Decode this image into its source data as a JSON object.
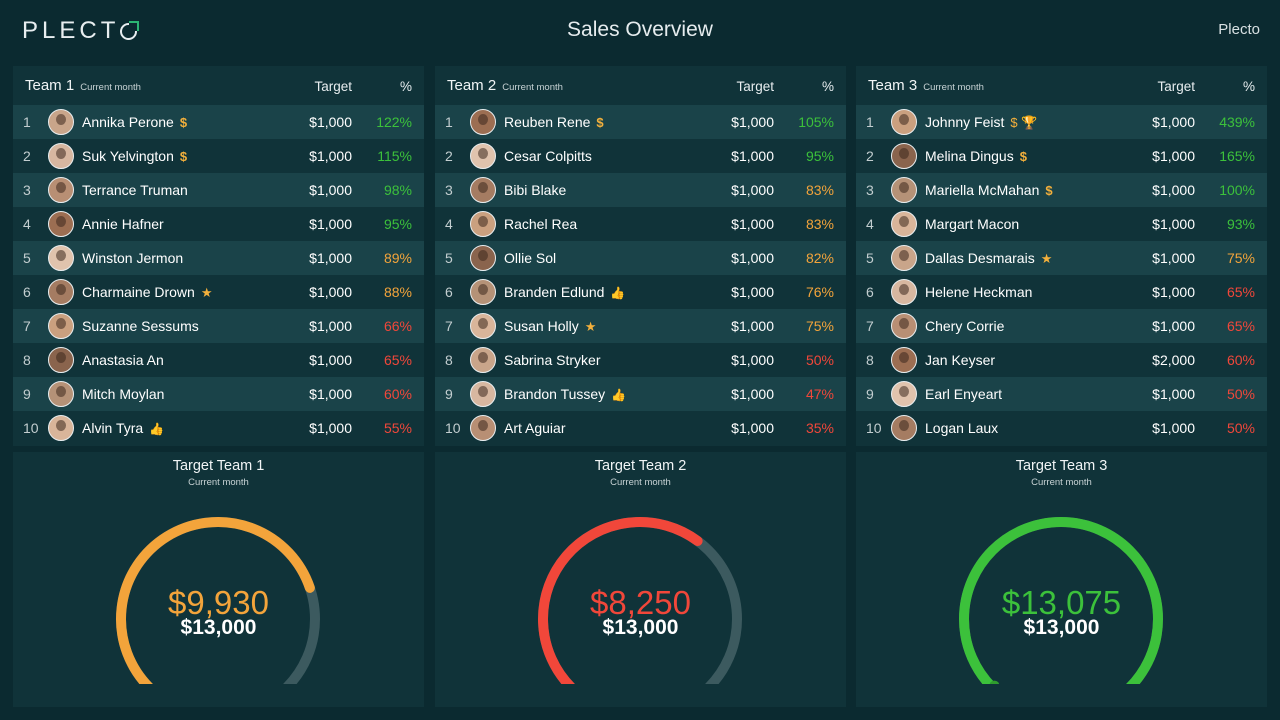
{
  "header": {
    "logo_text": "PLECT",
    "title": "Sales Overview",
    "brand": "Plecto"
  },
  "colors": {
    "background": "#0b2a30",
    "panel": "#103339",
    "row_alt": "#1a4349",
    "green": "#3cc13b",
    "orange": "#f3a43b",
    "red": "#f1473a",
    "gauge_track": "#3c5a5f"
  },
  "teams": [
    {
      "name": "Team 1",
      "period": "Current month",
      "target_header": "Target",
      "pct_header": "%",
      "rows": [
        {
          "rank": "1",
          "name": "Annika Perone",
          "badge": "$",
          "badge_icon": "dollar-icon",
          "target": "$1,000",
          "pct": "122%",
          "status": "green"
        },
        {
          "rank": "2",
          "name": "Suk Yelvington",
          "badge": "$",
          "badge_icon": "dollar-icon",
          "target": "$1,000",
          "pct": "115%",
          "status": "green"
        },
        {
          "rank": "3",
          "name": "Terrance Truman",
          "badge": "",
          "badge_icon": "",
          "target": "$1,000",
          "pct": "98%",
          "status": "green"
        },
        {
          "rank": "4",
          "name": "Annie Hafner",
          "badge": "",
          "badge_icon": "",
          "target": "$1,000",
          "pct": "95%",
          "status": "green"
        },
        {
          "rank": "5",
          "name": "Winston Jermon",
          "badge": "",
          "badge_icon": "",
          "target": "$1,000",
          "pct": "89%",
          "status": "orange"
        },
        {
          "rank": "6",
          "name": "Charmaine Drown",
          "badge": "★",
          "badge_icon": "star-icon",
          "target": "$1,000",
          "pct": "88%",
          "status": "orange"
        },
        {
          "rank": "7",
          "name": "Suzanne Sessums",
          "badge": "",
          "badge_icon": "",
          "target": "$1,000",
          "pct": "66%",
          "status": "red"
        },
        {
          "rank": "8",
          "name": "Anastasia An",
          "badge": "",
          "badge_icon": "",
          "target": "$1,000",
          "pct": "65%",
          "status": "red"
        },
        {
          "rank": "9",
          "name": "Mitch Moylan",
          "badge": "",
          "badge_icon": "",
          "target": "$1,000",
          "pct": "60%",
          "status": "red"
        },
        {
          "rank": "10",
          "name": "Alvin Tyra",
          "badge": "👍",
          "badge_icon": "thumbs-up-icon",
          "target": "$1,000",
          "pct": "55%",
          "status": "red"
        }
      ],
      "gauge": {
        "title": "Target Team 1",
        "period": "Current month",
        "value": "$9,930",
        "target": "$13,000",
        "fraction": 0.764,
        "color": "#f3a43b"
      }
    },
    {
      "name": "Team 2",
      "period": "Current month",
      "target_header": "Target",
      "pct_header": "%",
      "rows": [
        {
          "rank": "1",
          "name": "Reuben Rene",
          "badge": "$",
          "badge_icon": "dollar-icon",
          "target": "$1,000",
          "pct": "105%",
          "status": "green"
        },
        {
          "rank": "2",
          "name": "Cesar Colpitts",
          "badge": "",
          "badge_icon": "",
          "target": "$1,000",
          "pct": "95%",
          "status": "green"
        },
        {
          "rank": "3",
          "name": "Bibi Blake",
          "badge": "",
          "badge_icon": "",
          "target": "$1,000",
          "pct": "83%",
          "status": "orange"
        },
        {
          "rank": "4",
          "name": "Rachel Rea",
          "badge": "",
          "badge_icon": "",
          "target": "$1,000",
          "pct": "83%",
          "status": "orange"
        },
        {
          "rank": "5",
          "name": "Ollie Sol",
          "badge": "",
          "badge_icon": "",
          "target": "$1,000",
          "pct": "82%",
          "status": "orange"
        },
        {
          "rank": "6",
          "name": "Branden Edlund",
          "badge": "👍",
          "badge_icon": "thumbs-up-icon",
          "target": "$1,000",
          "pct": "76%",
          "status": "orange"
        },
        {
          "rank": "7",
          "name": "Susan Holly",
          "badge": "★",
          "badge_icon": "star-icon",
          "target": "$1,000",
          "pct": "75%",
          "status": "orange"
        },
        {
          "rank": "8",
          "name": "Sabrina Stryker",
          "badge": "",
          "badge_icon": "",
          "target": "$1,000",
          "pct": "50%",
          "status": "red"
        },
        {
          "rank": "9",
          "name": "Brandon Tussey",
          "badge": "👍",
          "badge_icon": "thumbs-up-icon",
          "target": "$1,000",
          "pct": "47%",
          "status": "red"
        },
        {
          "rank": "10",
          "name": "Art Aguiar",
          "badge": "",
          "badge_icon": "",
          "target": "$1,000",
          "pct": "35%",
          "status": "red"
        }
      ],
      "gauge": {
        "title": "Target Team 2",
        "period": "Current month",
        "value": "$8,250",
        "target": "$13,000",
        "fraction": 0.635,
        "color": "#f1473a"
      }
    },
    {
      "name": "Team 3",
      "period": "Current month",
      "target_header": "Target",
      "pct_header": "%",
      "rows": [
        {
          "rank": "1",
          "name": "Johnny Feist",
          "badge": "$ 🏆",
          "badge_icon": "dollar-trophy-icon",
          "target": "$1,000",
          "pct": "439%",
          "status": "green"
        },
        {
          "rank": "2",
          "name": "Melina Dingus",
          "badge": "$",
          "badge_icon": "dollar-icon",
          "target": "$1,000",
          "pct": "165%",
          "status": "green"
        },
        {
          "rank": "3",
          "name": "Mariella McMahan",
          "badge": "$",
          "badge_icon": "dollar-icon",
          "target": "$1,000",
          "pct": "100%",
          "status": "green"
        },
        {
          "rank": "4",
          "name": "Margart Macon",
          "badge": "",
          "badge_icon": "",
          "target": "$1,000",
          "pct": "93%",
          "status": "green"
        },
        {
          "rank": "5",
          "name": "Dallas Desmarais",
          "badge": "★",
          "badge_icon": "star-icon",
          "target": "$1,000",
          "pct": "75%",
          "status": "orange"
        },
        {
          "rank": "6",
          "name": "Helene Heckman",
          "badge": "",
          "badge_icon": "",
          "target": "$1,000",
          "pct": "65%",
          "status": "red"
        },
        {
          "rank": "7",
          "name": "Chery Corrie",
          "badge": "",
          "badge_icon": "",
          "target": "$1,000",
          "pct": "65%",
          "status": "red"
        },
        {
          "rank": "8",
          "name": "Jan Keyser",
          "badge": "",
          "badge_icon": "",
          "target": "$2,000",
          "pct": "60%",
          "status": "red"
        },
        {
          "rank": "9",
          "name": "Earl Enyeart",
          "badge": "",
          "badge_icon": "",
          "target": "$1,000",
          "pct": "50%",
          "status": "red"
        },
        {
          "rank": "10",
          "name": "Logan Laux",
          "badge": "",
          "badge_icon": "",
          "target": "$1,000",
          "pct": "50%",
          "status": "red"
        }
      ],
      "gauge": {
        "title": "Target Team 3",
        "period": "Current month",
        "value": "$13,075",
        "target": "$13,000",
        "fraction": 1.0,
        "color": "#3cc13b"
      }
    }
  ]
}
